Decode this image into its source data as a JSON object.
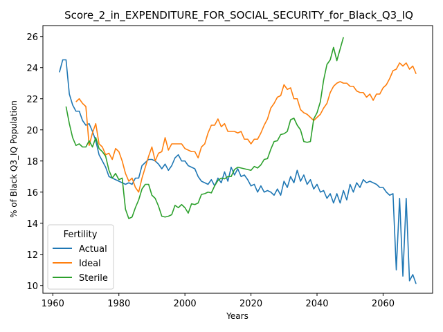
{
  "chart_data": {
    "type": "line",
    "title": "Score_2_in_EXPENDITURE_FOR_SOCIAL_SECURITY_for_Black_Q3_IQ",
    "xlabel": "Years",
    "ylabel": "% of Black Q3_IQ Population",
    "xlim": [
      1957,
      2075
    ],
    "ylim": [
      9.5,
      26.7
    ],
    "xticks": [
      1960,
      1980,
      2000,
      2020,
      2040,
      2060
    ],
    "yticks": [
      10,
      12,
      14,
      16,
      18,
      20,
      22,
      24,
      26
    ],
    "grid": false,
    "legend": {
      "title": "Fertility",
      "placement": "lower-left"
    },
    "series": [
      {
        "name": "Actual",
        "color": "#1f77b4",
        "x": [
          1962,
          1963,
          1964,
          1965,
          1966,
          1967,
          1968,
          1969,
          1970,
          1971,
          1972,
          1973,
          1974,
          1975,
          1976,
          1977,
          1978,
          1979,
          1980,
          1981,
          1982,
          1983,
          1984,
          1985,
          1986,
          1987,
          1988,
          1989,
          1990,
          1991,
          1992,
          1993,
          1994,
          1995,
          1996,
          1997,
          1998,
          1999,
          2000,
          2001,
          2002,
          2003,
          2004,
          2005,
          2006,
          2007,
          2008,
          2009,
          2010,
          2011,
          2012,
          2013,
          2014,
          2015,
          2016,
          2017,
          2018,
          2019,
          2020,
          2021,
          2022,
          2023,
          2024,
          2025,
          2026,
          2027,
          2028,
          2029,
          2030,
          2031,
          2032,
          2033,
          2034,
          2035,
          2036,
          2037,
          2038,
          2039,
          2040,
          2041,
          2042,
          2043,
          2044,
          2045,
          2046,
          2047,
          2048,
          2049,
          2050,
          2051,
          2052,
          2053,
          2054,
          2055,
          2056,
          2057,
          2058,
          2059,
          2060,
          2061,
          2062,
          2063,
          2064,
          2065,
          2066,
          2067,
          2068,
          2069,
          2070
        ],
        "y": [
          23.7,
          24.5,
          24.5,
          22.3,
          21.6,
          21.2,
          21.2,
          20.6,
          20.3,
          20.4,
          19.9,
          19.3,
          18.4,
          18.0,
          17.6,
          17.0,
          16.9,
          16.8,
          16.7,
          16.6,
          16.5,
          16.6,
          16.5,
          16.9,
          16.9,
          17.7,
          17.9,
          18.1,
          18.1,
          18.0,
          17.8,
          17.5,
          17.8,
          17.4,
          17.7,
          18.2,
          18.4,
          18.0,
          18.0,
          17.7,
          17.6,
          17.5,
          17.0,
          16.7,
          16.6,
          16.5,
          16.8,
          16.4,
          16.9,
          16.6,
          17.3,
          16.7,
          17.6,
          17.1,
          17.5,
          17.0,
          17.1,
          16.8,
          16.4,
          16.5,
          16.0,
          16.4,
          16.0,
          16.1,
          16.0,
          15.8,
          16.2,
          15.8,
          16.7,
          16.3,
          17.0,
          16.6,
          17.4,
          16.7,
          17.1,
          16.5,
          16.8,
          16.2,
          16.5,
          16.0,
          16.1,
          15.6,
          15.9,
          15.3,
          15.9,
          15.3,
          16.1,
          15.5,
          16.5,
          16.0,
          16.6,
          16.3,
          16.8,
          16.6,
          16.7,
          16.6,
          16.5,
          16.3,
          16.3,
          16.0,
          15.8,
          15.9,
          11.0,
          15.6,
          10.6,
          15.6,
          10.3,
          10.7,
          10.1
        ]
      },
      {
        "name": "Ideal",
        "color": "#ff7f0e",
        "x": [
          1967,
          1968,
          1969,
          1970,
          1971,
          1972,
          1973,
          1974,
          1975,
          1976,
          1977,
          1978,
          1979,
          1980,
          1981,
          1982,
          1983,
          1984,
          1985,
          1986,
          1987,
          1988,
          1989,
          1990,
          1991,
          1992,
          1993,
          1994,
          1995,
          1996,
          1997,
          1998,
          1999,
          2000,
          2001,
          2002,
          2003,
          2004,
          2005,
          2006,
          2007,
          2008,
          2009,
          2010,
          2011,
          2012,
          2013,
          2014,
          2015,
          2016,
          2017,
          2018,
          2019,
          2020,
          2021,
          2022,
          2023,
          2024,
          2025,
          2026,
          2027,
          2028,
          2029,
          2030,
          2031,
          2032,
          2033,
          2034,
          2035,
          2036,
          2037,
          2038,
          2039,
          2040,
          2041,
          2042,
          2043,
          2044,
          2045,
          2046,
          2047,
          2048,
          2049,
          2050,
          2051,
          2052,
          2053,
          2054,
          2055,
          2056,
          2057,
          2058,
          2059,
          2060,
          2061,
          2062,
          2063,
          2064,
          2065,
          2066,
          2067,
          2068,
          2069,
          2070
        ],
        "y": [
          21.8,
          22.0,
          21.7,
          21.5,
          19.0,
          19.8,
          20.4,
          19.1,
          18.9,
          18.4,
          18.5,
          18.1,
          18.8,
          18.6,
          18.0,
          17.2,
          16.7,
          16.9,
          16.3,
          16.0,
          16.9,
          17.6,
          18.3,
          18.9,
          18.0,
          18.5,
          18.6,
          19.5,
          18.7,
          19.1,
          19.1,
          19.1,
          19.1,
          18.8,
          18.7,
          18.6,
          18.6,
          18.2,
          18.9,
          19.1,
          19.8,
          20.3,
          20.3,
          20.7,
          20.2,
          20.4,
          19.9,
          19.9,
          19.9,
          19.8,
          19.9,
          19.4,
          19.4,
          19.1,
          19.4,
          19.4,
          19.8,
          20.3,
          20.7,
          21.4,
          21.7,
          22.1,
          22.2,
          22.9,
          22.6,
          22.7,
          22.0,
          22.0,
          21.3,
          21.1,
          21.0,
          20.8,
          20.6,
          20.8,
          21.0,
          21.4,
          21.7,
          22.4,
          22.8,
          23.0,
          23.1,
          23.0,
          23.0,
          22.8,
          22.8,
          22.5,
          22.4,
          22.4,
          22.1,
          22.3,
          21.9,
          22.3,
          22.3,
          22.7,
          22.9,
          23.3,
          23.8,
          23.9,
          24.3,
          24.1,
          24.3,
          23.9,
          24.1,
          23.6
        ]
      },
      {
        "name": "Sterile",
        "color": "#2ca02c",
        "x": [
          1964,
          1965,
          1966,
          1967,
          1968,
          1969,
          1970,
          1971,
          1972,
          1973,
          1974,
          1975,
          1976,
          1977,
          1978,
          1979,
          1980,
          1981,
          1982,
          1983,
          1984,
          1985,
          1986,
          1987,
          1988,
          1989,
          1990,
          1991,
          1992,
          1993,
          1994,
          1995,
          1996,
          1997,
          1998,
          1999,
          2000,
          2001,
          2002,
          2003,
          2004,
          2005,
          2006,
          2007,
          2008,
          2009,
          2010,
          2011,
          2012,
          2013,
          2014,
          2015,
          2016,
          2017,
          2018,
          2019,
          2020,
          2021,
          2022,
          2023,
          2024,
          2025,
          2026,
          2027,
          2028,
          2029,
          2030,
          2031,
          2032,
          2033,
          2034,
          2035,
          2036,
          2037,
          2038,
          2039,
          2040,
          2041,
          2042,
          2043,
          2044,
          2045,
          2046,
          2047,
          2048
        ],
        "y": [
          21.5,
          20.4,
          19.5,
          19.0,
          19.1,
          18.9,
          18.9,
          19.3,
          18.9,
          19.5,
          18.8,
          18.6,
          18.3,
          17.4,
          16.9,
          17.2,
          16.8,
          16.9,
          14.9,
          14.3,
          14.4,
          15.0,
          15.5,
          16.2,
          16.5,
          16.5,
          15.8,
          15.6,
          15.1,
          14.45,
          14.4,
          14.45,
          14.55,
          15.15,
          15.0,
          15.2,
          15.0,
          14.65,
          15.25,
          15.2,
          15.3,
          15.85,
          15.9,
          16.0,
          15.95,
          16.4,
          16.75,
          16.9,
          16.85,
          17.0,
          17.0,
          17.45,
          17.6,
          17.55,
          17.5,
          17.45,
          17.4,
          17.65,
          17.55,
          17.75,
          18.1,
          18.15,
          18.75,
          19.25,
          19.3,
          19.7,
          19.75,
          19.9,
          20.65,
          20.75,
          20.3,
          20.0,
          19.25,
          19.2,
          19.25,
          20.7,
          21.1,
          21.8,
          23.2,
          24.2,
          24.5,
          25.3,
          24.45,
          25.2,
          25.95
        ]
      }
    ]
  }
}
